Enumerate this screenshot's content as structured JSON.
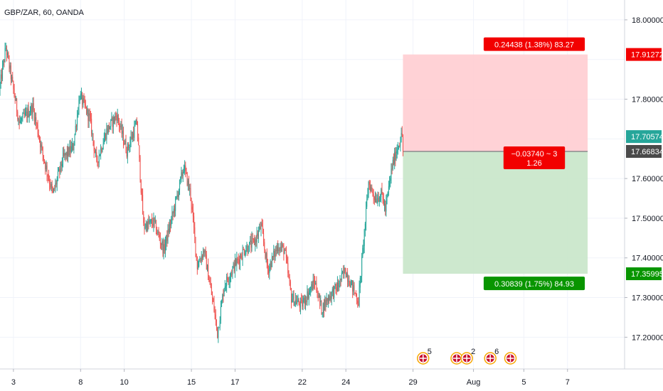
{
  "header": {
    "title": "GBP/ZAR, 60, OANDA"
  },
  "colors": {
    "up": "#26a69a",
    "down": "#ef5350",
    "stop_zone": "#ffcdd2",
    "target_zone": "#c8e6c9",
    "stop_label": "#f20000",
    "target_label": "#089500",
    "entry_label": "#f20000",
    "grid": "#f0f3fa",
    "current_price_label": "#26a69a",
    "entry_price_label": "#4a4a4a"
  },
  "chart_data": {
    "type": "candlestick",
    "title": "GBP/ZAR, 60, OANDA",
    "ylim": [
      17.12,
      18.05
    ],
    "y_ticks": [
      "18.00000",
      "17.80000",
      "17.60000",
      "17.50000",
      "17.40000",
      "17.30000",
      "17.20000"
    ],
    "x_ticks": [
      "3",
      "8",
      "10",
      "15",
      "17",
      "22",
      "24",
      "29",
      "Aug",
      "5",
      "7"
    ],
    "series_path": [
      [
        0,
        17.82
      ],
      [
        2,
        17.93
      ],
      [
        6,
        17.74
      ],
      [
        10,
        17.78
      ],
      [
        13,
        17.66
      ],
      [
        16,
        17.56
      ],
      [
        19,
        17.65
      ],
      [
        22,
        17.68
      ],
      [
        24,
        17.81
      ],
      [
        27,
        17.75
      ],
      [
        29,
        17.64
      ],
      [
        32,
        17.72
      ],
      [
        35,
        17.76
      ],
      [
        38,
        17.67
      ],
      [
        41,
        17.74
      ],
      [
        43,
        17.48
      ],
      [
        46,
        17.49
      ],
      [
        49,
        17.42
      ],
      [
        52,
        17.52
      ],
      [
        55,
        17.63
      ],
      [
        57,
        17.56
      ],
      [
        59,
        17.38
      ],
      [
        61,
        17.42
      ],
      [
        64,
        17.27
      ],
      [
        65,
        17.21
      ],
      [
        67,
        17.33
      ],
      [
        70,
        17.38
      ],
      [
        73,
        17.42
      ],
      [
        76,
        17.44
      ],
      [
        78,
        17.48
      ],
      [
        80,
        17.37
      ],
      [
        83,
        17.43
      ],
      [
        85,
        17.42
      ],
      [
        87,
        17.3
      ],
      [
        90,
        17.28
      ],
      [
        92,
        17.31
      ],
      [
        94,
        17.34
      ],
      [
        96,
        17.27
      ],
      [
        98,
        17.3
      ],
      [
        101,
        17.33
      ],
      [
        103,
        17.37
      ],
      [
        106,
        17.31
      ],
      [
        107,
        17.29
      ],
      [
        110,
        17.59
      ],
      [
        112,
        17.55
      ],
      [
        114,
        17.56
      ],
      [
        115,
        17.52
      ],
      [
        117,
        17.63
      ],
      [
        119,
        17.69
      ],
      [
        120,
        17.71
      ]
    ],
    "last_index": 120,
    "forecast_index": 175,
    "current_price": "17.70574",
    "entry_price": "17.66834",
    "stop_price": "17.91272",
    "target_price": "17.35995",
    "entry_value": 17.66834,
    "stop_value": 17.91272,
    "target_value": 17.35995,
    "x_labels": [
      {
        "text": "3",
        "index": 4
      },
      {
        "text": "8",
        "index": 24
      },
      {
        "text": "10",
        "index": 37
      },
      {
        "text": "15",
        "index": 57
      },
      {
        "text": "17",
        "index": 70
      },
      {
        "text": "22",
        "index": 90
      },
      {
        "text": "24",
        "index": 103
      },
      {
        "text": "29",
        "index": 123
      },
      {
        "text": "Aug",
        "index": 141
      },
      {
        "text": "5",
        "index": 156
      },
      {
        "text": "7",
        "index": 169
      }
    ],
    "position": {
      "stop_label": "0.24438 (1.38%) 83.27",
      "entry_label_line1": "−0.03740 ~ 3",
      "entry_label_line2": "1.26",
      "target_label": "0.30839 (1.75%) 84.93"
    },
    "events": [
      {
        "index": 126,
        "count": "5"
      },
      {
        "index": 136,
        "count": ""
      },
      {
        "index": 139,
        "count": "2"
      },
      {
        "index": 146,
        "count": "6"
      },
      {
        "index": 152,
        "count": ""
      }
    ]
  }
}
